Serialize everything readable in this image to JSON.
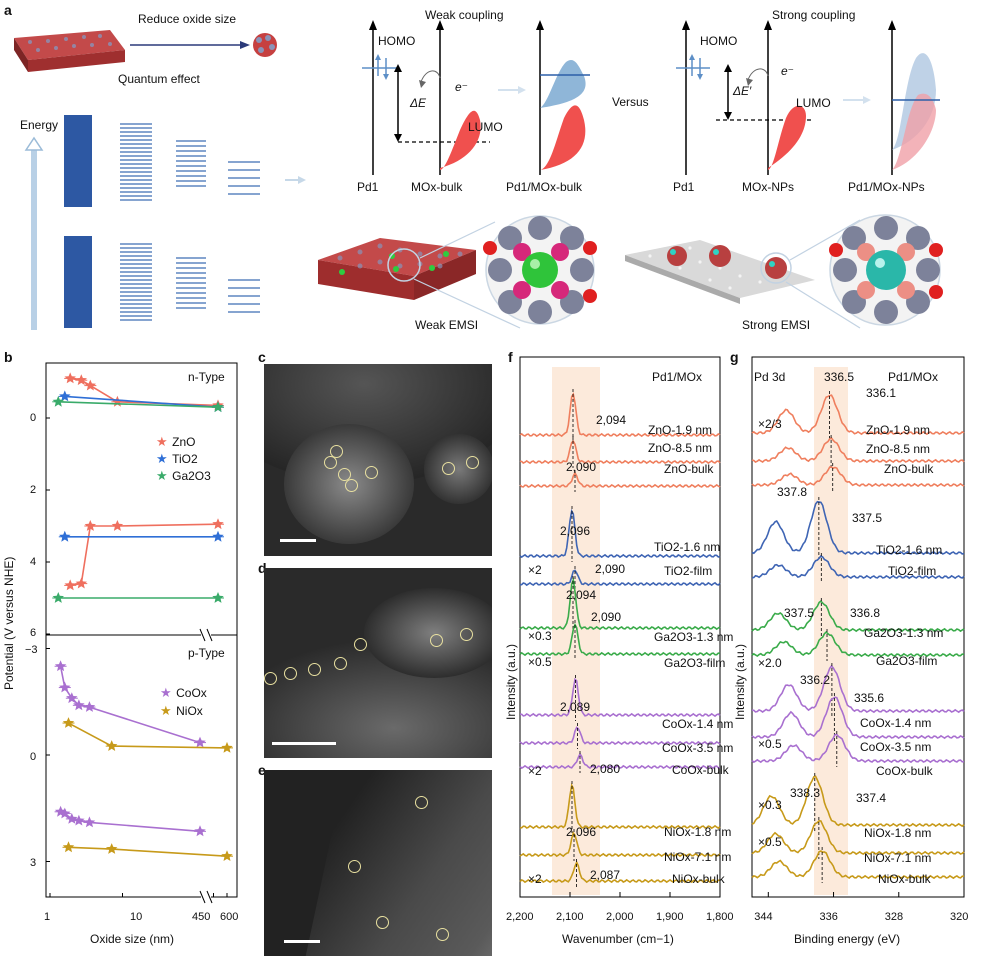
{
  "panel_a": {
    "letter": "a",
    "reduce": "Reduce oxide size",
    "quantum": "Quantum effect",
    "energy": "Energy",
    "weak_coupling": "Weak coupling",
    "strong_coupling": "Strong coupling",
    "homo1": "HOMO",
    "homo2": "HOMO",
    "lumo1": "LUMO",
    "lumo2": "LUMO",
    "dE1": "ΔE",
    "dE2": "ΔE′",
    "e1": "e⁻",
    "e2": "e⁻",
    "versus": "Versus",
    "pd1a": "Pd1",
    "mox_bulk": "MOx-bulk",
    "pd_mox_bulk": "Pd1/MOx-bulk",
    "pd1b": "Pd1",
    "mox_nps": "MOx-NPs",
    "pd_mox_nps": "Pd1/MOx-NPs",
    "weak_emsi": "Weak EMSI",
    "strong_emsi": "Strong EMSI",
    "colors": {
      "blue": "#2c5fa8",
      "red": "#f0504e",
      "lightblue": "#8fb6d8"
    }
  },
  "panel_b": {
    "letter": "b",
    "ylabel": "Potential (V versus NHE)",
    "xlabel": "Oxide size (nm)",
    "ntype": "n-Type",
    "ptype": "p-Type",
    "x_ticks": [
      "1",
      "10",
      "450",
      "600"
    ],
    "y_ticks_n": [
      "0",
      "2",
      "4",
      "6"
    ],
    "y_ticks_p": [
      "−3",
      "0",
      "3"
    ],
    "legend_n": [
      "ZnO",
      "TiO2",
      "Ga2O3"
    ],
    "legend_p": [
      "CoOx",
      "NiOx"
    ],
    "colors": {
      "ZnO": "#ef6f5e",
      "TiO2": "#2f6fd6",
      "Ga2O3": "#3aab6a",
      "CoOx": "#a970d0",
      "NiOx": "#c79a1a"
    }
  },
  "chart_data": [
    {
      "type": "scatter",
      "title": "n-Type",
      "xlabel": "Oxide size (nm)",
      "ylabel": "Potential (V versus NHE)",
      "xscale": "log",
      "ylim": [
        6,
        -1.5
      ],
      "series": [
        {
          "name": "ZnO CB",
          "x": [
            1.9,
            2.7,
            3.6,
            8.5,
            500
          ],
          "y": [
            -1.1,
            -1.05,
            -0.9,
            -0.45,
            -0.35
          ]
        },
        {
          "name": "TiO2 CB",
          "x": [
            1.6,
            500
          ],
          "y": [
            -0.6,
            -0.3
          ]
        },
        {
          "name": "Ga2O3 CB",
          "x": [
            1.3,
            500
          ],
          "y": [
            -0.45,
            -0.3
          ]
        },
        {
          "name": "ZnO VB",
          "x": [
            1.9,
            2.7,
            3.6,
            8.5,
            500
          ],
          "y": [
            4.65,
            4.6,
            3.0,
            3.0,
            2.95
          ]
        },
        {
          "name": "TiO2 VB",
          "x": [
            1.6,
            500
          ],
          "y": [
            3.3,
            3.3
          ]
        },
        {
          "name": "Ga2O3 VB",
          "x": [
            1.3,
            500
          ],
          "y": [
            5.0,
            5.0
          ]
        }
      ]
    },
    {
      "type": "scatter",
      "title": "p-Type",
      "xlabel": "Oxide size (nm)",
      "ylabel": "Potential (V versus NHE)",
      "xscale": "log",
      "ylim": [
        4,
        -3.3
      ],
      "series": [
        {
          "name": "CoOx CB",
          "x": [
            1.4,
            1.6,
            2.0,
            2.5,
            3.5,
            300
          ],
          "y": [
            -2.5,
            -1.9,
            -1.6,
            -1.4,
            -1.35,
            -0.35
          ]
        },
        {
          "name": "NiOx CB",
          "x": [
            1.8,
            7.1,
            600
          ],
          "y": [
            -0.9,
            -0.25,
            -0.2
          ]
        },
        {
          "name": "CoOx VB",
          "x": [
            1.4,
            1.6,
            2.0,
            2.5,
            3.5,
            300
          ],
          "y": [
            1.6,
            1.65,
            1.8,
            1.85,
            1.9,
            2.15
          ]
        },
        {
          "name": "NiOx VB",
          "x": [
            1.8,
            7.1,
            600
          ],
          "y": [
            2.6,
            2.65,
            2.85
          ]
        }
      ]
    },
    {
      "type": "line",
      "title": "Pd1/MOx",
      "xlabel": "Wavenumber (cm−1)",
      "ylabel": "Intensity (a.u.)",
      "xlim": [
        2200,
        1800
      ],
      "x_ticks": [
        "2,200",
        "2,100",
        "2,000",
        "1,900",
        "1,800"
      ],
      "series": [
        {
          "name": "ZnO-1.9 nm",
          "peak": 2094
        },
        {
          "name": "ZnO-8.5 nm",
          "peak": 2094
        },
        {
          "name": "ZnO-bulk",
          "peak": 2090
        },
        {
          "name": "TiO2-1.6 nm",
          "peak": 2096
        },
        {
          "name": "TiO2-film",
          "peak": 2090,
          "scale": "×2"
        },
        {
          "name": "Ga2O3-1.3 nm",
          "peak": 2094,
          "scale": "×0.3"
        },
        {
          "name": "Ga2O3-film",
          "peak": 2090,
          "scale": "×0.5"
        },
        {
          "name": "CoOx-1.4 nm",
          "peak": 2089
        },
        {
          "name": "CoOx-3.5 nm",
          "peak": 2085
        },
        {
          "name": "CoOx-bulk",
          "peak": 2080,
          "scale": "×2"
        },
        {
          "name": "NiOx-1.8 nm",
          "peak": 2096
        },
        {
          "name": "NiOx-7.1 nm",
          "peak": 2092
        },
        {
          "name": "NiOx-bulk",
          "peak": 2087,
          "scale": "×2"
        }
      ]
    },
    {
      "type": "line",
      "title": "Pd1/MOx",
      "xlabel": "Binding energy (eV)",
      "ylabel": "Intensity (a.u.)",
      "xlim": [
        346,
        320
      ],
      "x_ticks": [
        "344",
        "336",
        "328",
        "320"
      ],
      "series": [
        {
          "name": "ZnO-1.9 nm",
          "peak": 336.5,
          "scale": "×2/3"
        },
        {
          "name": "ZnO-8.5 nm",
          "peak": 336.3
        },
        {
          "name": "ZnO-bulk",
          "peak": 336.1
        },
        {
          "name": "TiO2-1.6 nm",
          "peak": 337.8
        },
        {
          "name": "TiO2-film",
          "peak": 337.5
        },
        {
          "name": "Ga2O3-1.3 nm",
          "peak": 337.5
        },
        {
          "name": "Ga2O3-film",
          "peak": 336.8,
          "scale": "×2.0"
        },
        {
          "name": "CoOx-1.4 nm",
          "peak": 336.2,
          "scale": "×0.5"
        },
        {
          "name": "CoOx-3.5 nm",
          "peak": 335.9
        },
        {
          "name": "CoOx-bulk",
          "peak": 335.6
        },
        {
          "name": "NiOx-1.8 nm",
          "peak": 338.3,
          "scale": "×0.3"
        },
        {
          "name": "NiOx-7.1 nm",
          "peak": 337.8,
          "scale": "×0.5"
        },
        {
          "name": "NiOx-bulk",
          "peak": 337.4
        }
      ]
    }
  ],
  "panel_c": {
    "letter": "c"
  },
  "panel_d": {
    "letter": "d"
  },
  "panel_e": {
    "letter": "e"
  },
  "panel_f": {
    "letter": "f",
    "title": "Pd1/MOx",
    "ylabel": "Intensity (a.u.)",
    "xlabel": "Wavenumber (cm−1)",
    "x_ticks": [
      "2,200",
      "2,100",
      "2,000",
      "1,900",
      "1,800"
    ],
    "peak_labels": [
      "2,094",
      "2,090",
      "2,096",
      "2,090",
      "2,094",
      "2,090",
      "2,089",
      "2,080",
      "2,096",
      "2,087"
    ],
    "scales": [
      "×2",
      "×0.3",
      "×0.5",
      "×2",
      "×2"
    ],
    "curve_labels": [
      "ZnO-1.9 nm",
      "ZnO-8.5 nm",
      "ZnO-bulk",
      "TiO2-1.6 nm",
      "TiO2-film",
      "Ga2O3-1.3 nm",
      "Ga2O3-film",
      "CoOx-1.4 nm",
      "CoOx-3.5 nm",
      "CoOx-bulk",
      "NiOx-1.8 nm",
      "NiOx-7.1 nm",
      "NiOx-bulk"
    ]
  },
  "panel_g": {
    "letter": "g",
    "title": "Pd1/MOx",
    "pd3d": "Pd 3d",
    "ylabel": "Intensity (a.u.)",
    "xlabel": "Binding energy (eV)",
    "x_ticks": [
      "344",
      "336",
      "328",
      "320"
    ],
    "peak_labels": [
      "336.5",
      "336.1",
      "337.8",
      "337.5",
      "337.5",
      "336.8",
      "336.2",
      "335.6",
      "338.3",
      "337.4"
    ],
    "scales": [
      "×2/3",
      "×2.0",
      "×0.5",
      "×0.3",
      "×0.5"
    ],
    "curve_labels": [
      "ZnO-1.9 nm",
      "ZnO-8.5 nm",
      "ZnO-bulk",
      "TiO2-1.6 nm",
      "TiO2-film",
      "Ga2O3-1.3 nm",
      "Ga2O3-film",
      "CoOx-1.4 nm",
      "CoOx-3.5 nm",
      "CoOx-bulk",
      "NiOx-1.8 nm",
      "NiOx-7.1 nm",
      "NiOx-bulk"
    ]
  }
}
